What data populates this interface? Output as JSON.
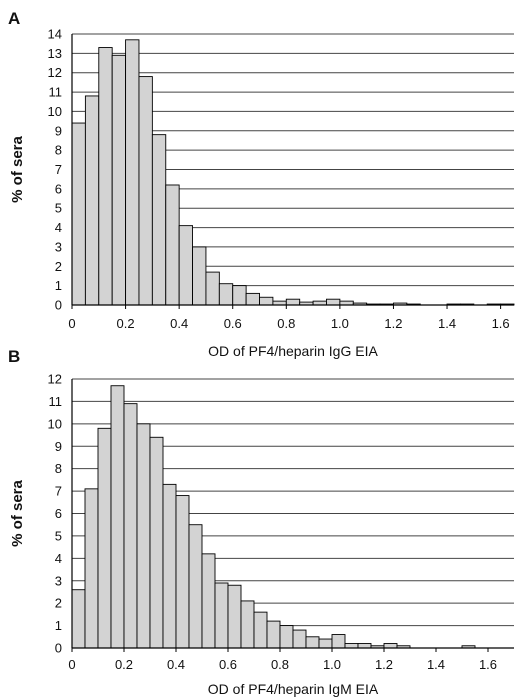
{
  "colors": {
    "bar_fill": "#d3d3d3",
    "bar_stroke": "#000000",
    "grid": "#444444",
    "text": "#111111"
  },
  "chart_data": [
    {
      "panel": "A",
      "type": "bar",
      "xlabel": "OD of PF4/heparin IgG EIA",
      "ylabel": "% of sera",
      "xlim": [
        0,
        1.65
      ],
      "ylim": [
        0,
        14
      ],
      "bin_width": 0.05,
      "x_ticks": [
        "0",
        "0.2",
        "0.4",
        "0.6",
        "0.8",
        "1.0",
        "1.2",
        "1.4",
        "1.6"
      ],
      "y_ticks": [
        "0",
        "1",
        "2",
        "3",
        "4",
        "5",
        "6",
        "7",
        "8",
        "9",
        "10",
        "11",
        "12",
        "13",
        "14"
      ],
      "grid": "horizontal",
      "bin_starts": [
        0.0,
        0.05,
        0.1,
        0.15,
        0.2,
        0.25,
        0.3,
        0.35,
        0.4,
        0.45,
        0.5,
        0.55,
        0.6,
        0.65,
        0.7,
        0.75,
        0.8,
        0.85,
        0.9,
        0.95,
        1.0,
        1.05,
        1.1,
        1.15,
        1.2,
        1.25,
        1.3,
        1.35,
        1.4,
        1.45,
        1.5,
        1.55,
        1.6
      ],
      "values": [
        9.4,
        10.8,
        13.3,
        12.9,
        13.7,
        11.8,
        8.8,
        6.2,
        4.1,
        3.0,
        1.7,
        1.1,
        1.0,
        0.6,
        0.4,
        0.2,
        0.3,
        0.15,
        0.2,
        0.3,
        0.2,
        0.1,
        0.05,
        0.05,
        0.1,
        0.05,
        0.0,
        0.0,
        0.05,
        0.05,
        0.0,
        0.05,
        0.05
      ]
    },
    {
      "panel": "B",
      "type": "bar",
      "xlabel": "OD of PF4/heparin IgM EIA",
      "ylabel": "% of sera",
      "xlim": [
        0,
        1.7
      ],
      "ylim": [
        0,
        12
      ],
      "bin_width": 0.05,
      "x_ticks": [
        "0",
        "0.2",
        "0.4",
        "0.6",
        "0.8",
        "1.0",
        "1.2",
        "1.4",
        "1.6"
      ],
      "y_ticks": [
        "0",
        "1",
        "2",
        "3",
        "4",
        "5",
        "6",
        "7",
        "8",
        "9",
        "10",
        "11",
        "12"
      ],
      "grid": "horizontal",
      "bin_starts": [
        0.0,
        0.05,
        0.1,
        0.15,
        0.2,
        0.25,
        0.3,
        0.35,
        0.4,
        0.45,
        0.5,
        0.55,
        0.6,
        0.65,
        0.7,
        0.75,
        0.8,
        0.85,
        0.9,
        0.95,
        1.0,
        1.05,
        1.1,
        1.15,
        1.2,
        1.25,
        1.3,
        1.35,
        1.4,
        1.45,
        1.5,
        1.55,
        1.6,
        1.65
      ],
      "values": [
        2.6,
        7.1,
        9.8,
        11.7,
        10.9,
        10.0,
        9.4,
        7.3,
        6.8,
        5.5,
        4.2,
        2.9,
        2.8,
        2.1,
        1.6,
        1.2,
        1.0,
        0.8,
        0.5,
        0.4,
        0.6,
        0.2,
        0.2,
        0.1,
        0.2,
        0.1,
        0.0,
        0.0,
        0.0,
        0.0,
        0.1,
        0.0,
        0.0,
        0.0
      ]
    }
  ]
}
